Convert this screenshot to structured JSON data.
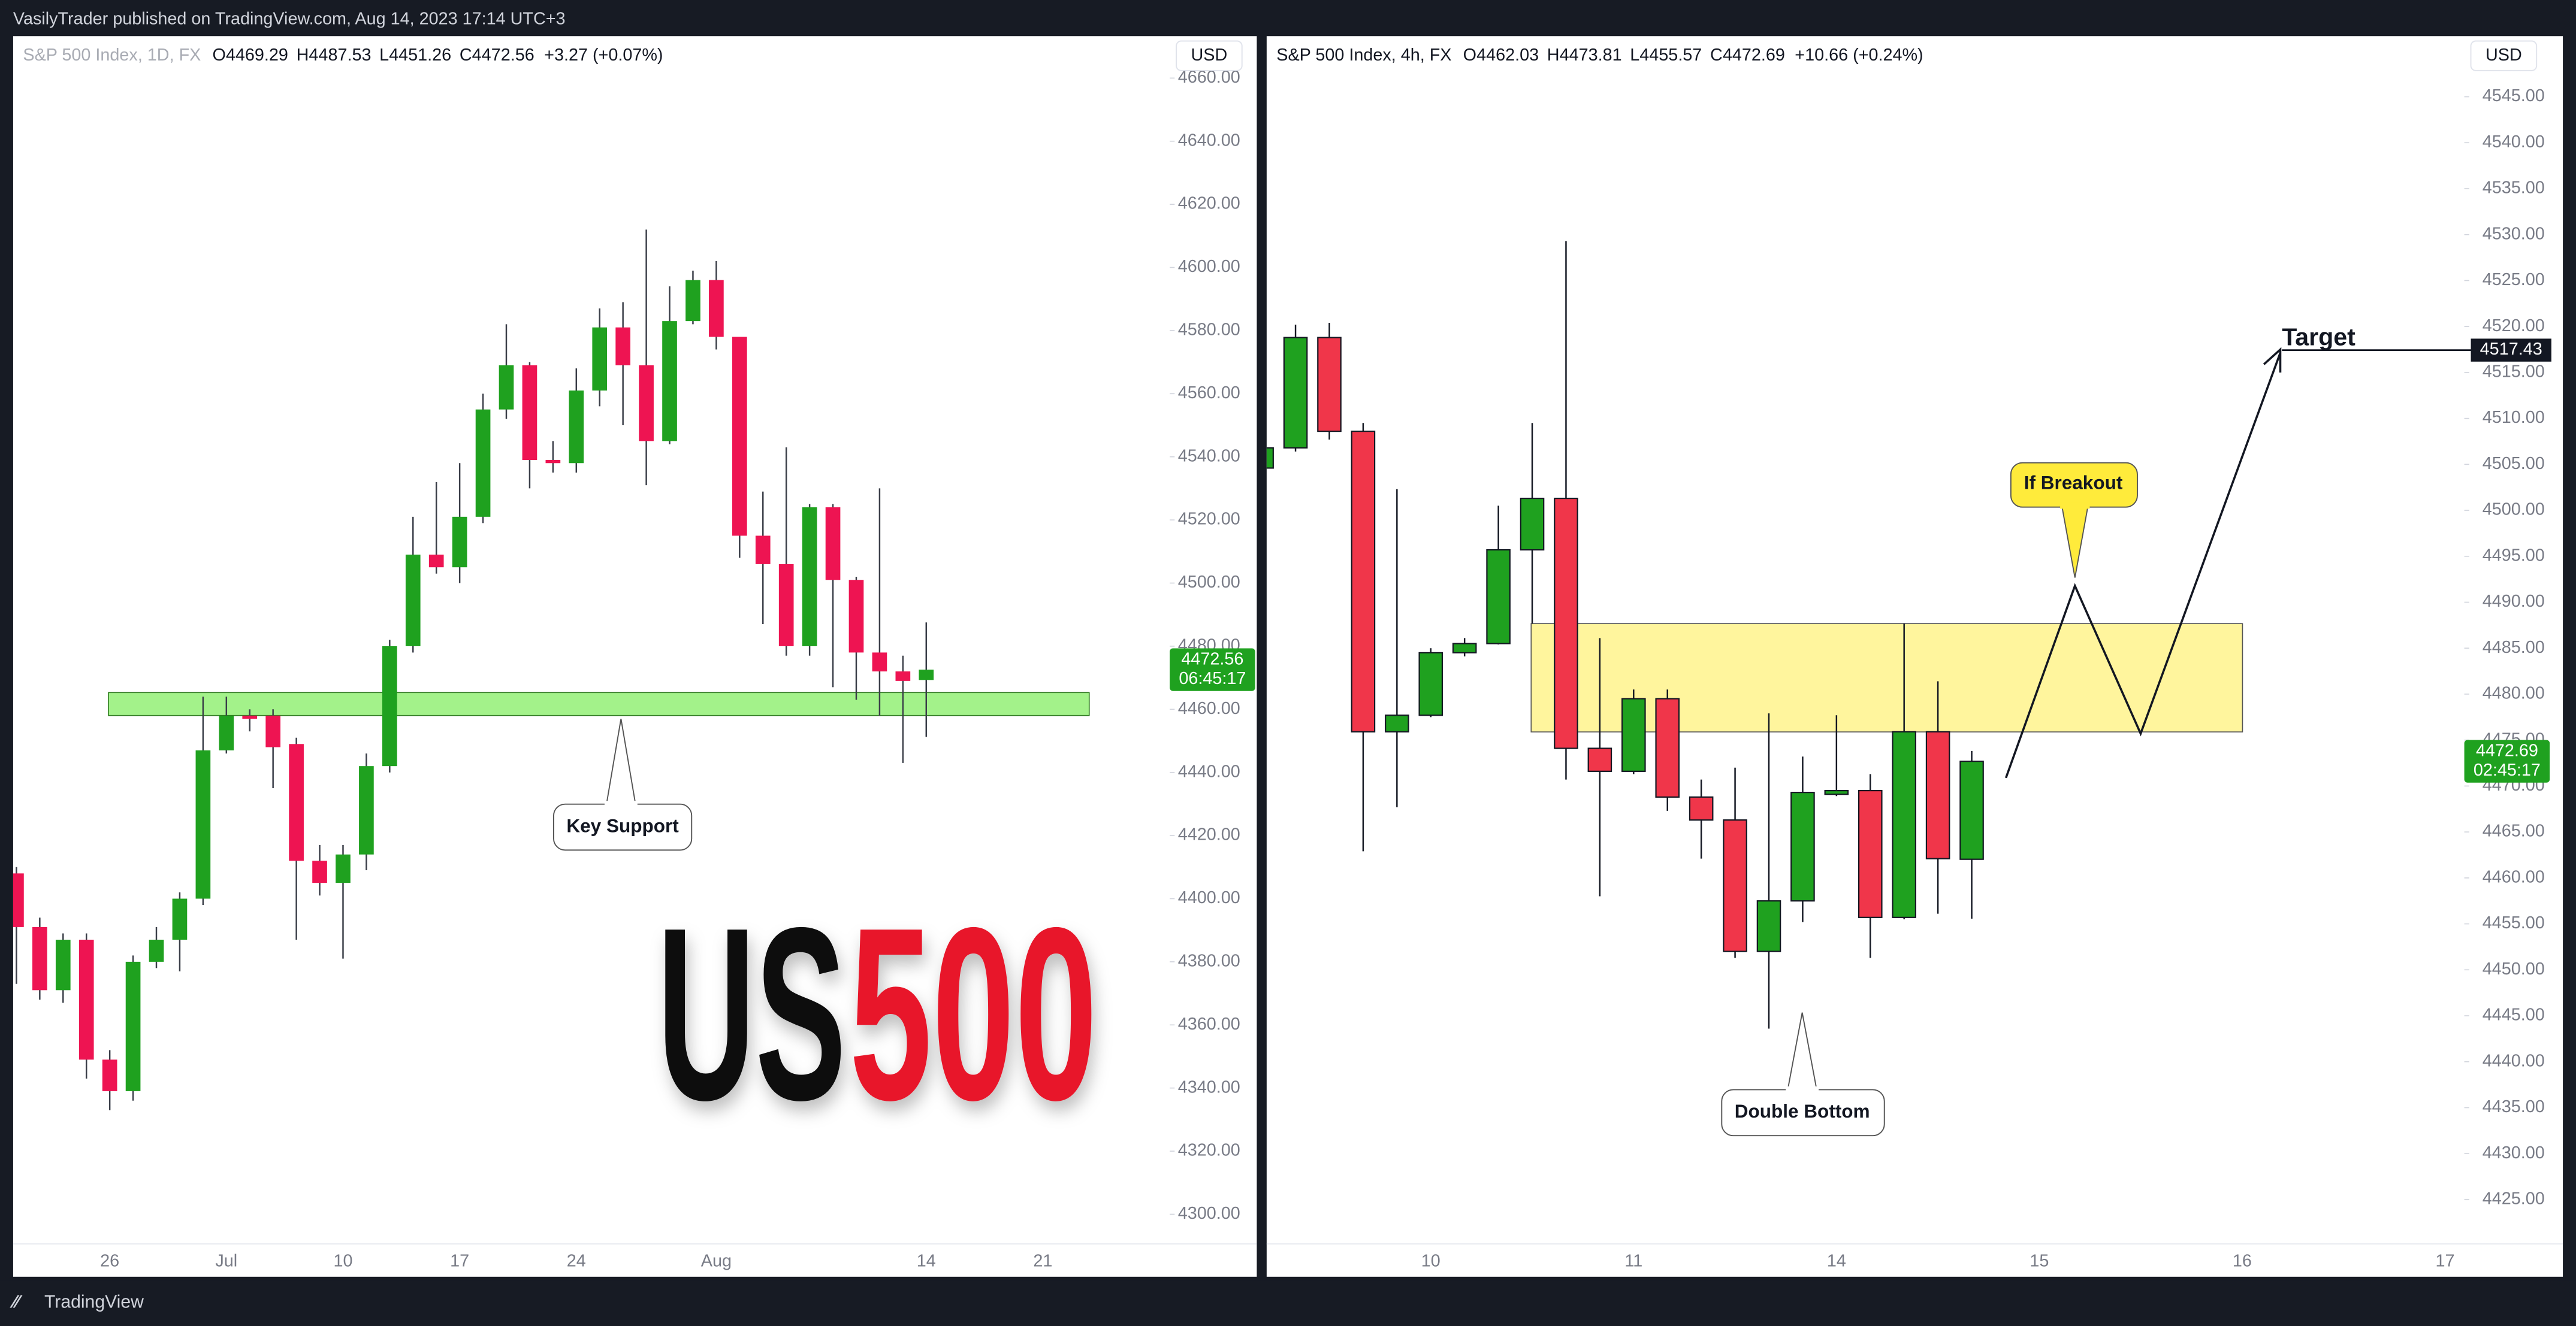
{
  "header": {
    "text": "VasilyTrader published on TradingView.com, Aug 14, 2023 17:14 UTC+3"
  },
  "footer": {
    "brand": "TradingView"
  },
  "chart_data": [
    {
      "type": "candlestick",
      "symbol": "S&P 500 Index, 1D, FX",
      "legend_keys": [
        "O",
        "H",
        "L",
        "C"
      ],
      "legend_values": [
        "4469.29",
        "4487.53",
        "4451.26",
        "4472.56"
      ],
      "change": "+3.27 (+0.07%)",
      "currency": "USD",
      "last_price": "4472.56",
      "countdown": "06:45:17",
      "up_color": "#1fa11f",
      "down_color": "#ee1452",
      "wick_color": "#3a3e48",
      "note": "Key Support",
      "watermark": [
        "US",
        "500"
      ],
      "categories": [
        null,
        null,
        null,
        null,
        "26",
        null,
        null,
        null,
        null,
        "Jul",
        null,
        null,
        null,
        null,
        "10",
        null,
        null,
        null,
        null,
        "17",
        null,
        null,
        null,
        null,
        "24",
        null,
        null,
        null,
        null,
        null,
        "Aug",
        null,
        null,
        null,
        null,
        null,
        null,
        null,
        null,
        "14",
        null,
        null,
        null,
        null,
        "21"
      ],
      "open": [
        4408,
        4391,
        4371,
        4387,
        4349,
        4339,
        4380,
        4387,
        4400,
        4447,
        4458,
        4458,
        4449,
        4412,
        4405,
        4414,
        4442,
        4480,
        4509,
        4505,
        4521,
        4555,
        4569,
        4539,
        4538,
        4561,
        4581,
        4569,
        4545,
        4583,
        4596,
        4578,
        4515,
        4506,
        4480,
        4524,
        4501,
        4478,
        4472,
        4469.29,
        null,
        null,
        null,
        null,
        null
      ],
      "high": [
        4410,
        4394,
        4389,
        4389,
        4352,
        4382,
        4391,
        4402,
        4464,
        4464,
        4460,
        4460,
        4451,
        4417,
        4417,
        4446,
        4482,
        4521,
        4532,
        4538,
        4560,
        4582,
        4570,
        4545,
        4568,
        4587,
        4589,
        4612,
        4594,
        4599,
        4602,
        4578,
        4529,
        4543,
        4525,
        4525,
        4502,
        4530,
        4477,
        4487.53,
        null,
        null,
        null,
        null,
        null
      ],
      "low": [
        4373,
        4368,
        4367,
        4343,
        4333,
        4336,
        4378,
        4377,
        4398,
        4446,
        4453,
        4435,
        4387,
        4401,
        4381,
        4409,
        4440,
        4478,
        4503,
        4500,
        4519,
        4552,
        4530,
        4535,
        4535,
        4556,
        4550,
        4531,
        4544,
        4582,
        4574,
        4508,
        4487,
        4477,
        4477,
        4467,
        4463,
        4458,
        4443,
        4451.26,
        null,
        null,
        null,
        null,
        null
      ],
      "close": [
        4391,
        4371,
        4387,
        4349,
        4339,
        4380,
        4387,
        4400,
        4447,
        4458,
        4457,
        4448,
        4412,
        4405,
        4414,
        4442,
        4480,
        4509,
        4505,
        4521,
        4555,
        4569,
        4539,
        4538,
        4561,
        4581,
        4569,
        4545,
        4583,
        4596,
        4578,
        4515,
        4506,
        4480,
        4524,
        4501,
        4478,
        4472,
        4469,
        4472.56,
        null,
        null,
        null,
        null,
        null
      ],
      "ylim": [
        4280.2,
        4673.3
      ],
      "yticks": [
        {
          "value": 4300,
          "label": "4300.00"
        },
        {
          "value": 4320,
          "label": "4320.00"
        },
        {
          "value": 4340,
          "label": "4340.00"
        },
        {
          "value": 4360,
          "label": "4360.00"
        },
        {
          "value": 4380,
          "label": "4380.00"
        },
        {
          "value": 4400,
          "label": "4400.00"
        },
        {
          "value": 4420,
          "label": "4420.00"
        },
        {
          "value": 4440,
          "label": "4440.00"
        },
        {
          "value": 4460,
          "label": "4460.00"
        },
        {
          "value": 4480,
          "label": "4480.00"
        },
        {
          "value": 4500,
          "label": "4500.00"
        },
        {
          "value": 4520,
          "label": "4520.00"
        },
        {
          "value": 4540,
          "label": "4540.00"
        },
        {
          "value": 4560,
          "label": "4560.00"
        },
        {
          "value": 4580,
          "label": "4580.00"
        },
        {
          "value": 4600,
          "label": "4600.00"
        },
        {
          "value": 4620,
          "label": "4620.00"
        },
        {
          "value": 4640,
          "label": "4640.00"
        },
        {
          "value": 4660,
          "label": "4660.00"
        }
      ]
    },
    {
      "type": "candlestick",
      "symbol": "S&P 500 Index, 4h, FX",
      "legend_keys": [
        "O",
        "H",
        "L",
        "C"
      ],
      "legend_values": [
        "4462.03",
        "4473.81",
        "4455.57",
        "4472.69"
      ],
      "change": "+10.66 (+0.24%)",
      "currency": "USD",
      "last_price": "4472.69",
      "countdown": "02:45:17",
      "up_color": "#1fa11f",
      "down_color": "#f0364a",
      "wick_color": "#131722",
      "border_color": "#131722",
      "notes": [
        "Double Bottom",
        "If Breakout"
      ],
      "target_label": "Target",
      "target_price": {
        "value": 4517.43,
        "label": "4517.43"
      },
      "categories": [
        null,
        null,
        null,
        null,
        null,
        "10",
        null,
        null,
        null,
        null,
        null,
        "11",
        null,
        null,
        null,
        null,
        null,
        "14",
        null,
        null,
        null,
        null,
        null,
        "15",
        null,
        null,
        null,
        null,
        null,
        "16",
        null,
        null,
        null,
        null,
        null,
        "17"
      ],
      "open": [
        4504.6,
        4506.8,
        4518.8,
        4508.6,
        4475.9,
        4477.7,
        4484.5,
        4485.5,
        4495.7,
        4501.3,
        4474.1,
        4471.6,
        4479.5,
        4468.8,
        4466.3,
        4452,
        4457.5,
        4469.1,
        4469.5,
        4455.7,
        4475.9,
        4462.03,
        null,
        null,
        null,
        null,
        null,
        null,
        null,
        null,
        null,
        null,
        null,
        null,
        null,
        null
      ],
      "high": [
        4507.2,
        4520.2,
        4520.4,
        4509.5,
        4502.3,
        4485,
        4486.1,
        4500.5,
        4509.5,
        4529.3,
        4486.1,
        4480.5,
        4480.5,
        4470.7,
        4472,
        4477.9,
        4473.2,
        4477.7,
        4471.3,
        4487.7,
        4481.4,
        4473.81,
        null,
        null,
        null,
        null,
        null,
        null,
        null,
        null,
        null,
        null,
        null,
        null,
        null,
        null
      ],
      "low": [
        4504.2,
        4506.4,
        4507.7,
        4462.9,
        4467.7,
        4477.5,
        4484.1,
        4485.4,
        4487.7,
        4470.7,
        4458,
        4471.3,
        4467.3,
        4462.1,
        4451.3,
        4443.6,
        4455.2,
        4468.9,
        4451.3,
        4455.5,
        4456.1,
        4455.57,
        null,
        null,
        null,
        null,
        null,
        null,
        null,
        null,
        null,
        null,
        null,
        null,
        null,
        null
      ],
      "close": [
        4506.8,
        4518.8,
        4508.6,
        4475.9,
        4477.7,
        4484.5,
        4485.5,
        4495.7,
        4501.3,
        4474.1,
        4471.6,
        4479.5,
        4468.8,
        4466.3,
        4452,
        4457.5,
        4469.3,
        4469.5,
        4455.7,
        4475.9,
        4462.1,
        4472.69,
        null,
        null,
        null,
        null,
        null,
        null,
        null,
        null,
        null,
        null,
        null,
        null,
        null,
        null
      ],
      "ylim": [
        4416.6,
        4551.6
      ],
      "yticks": [
        {
          "value": 4425,
          "label": "4425.00"
        },
        {
          "value": 4430,
          "label": "4430.00"
        },
        {
          "value": 4435,
          "label": "4435.00"
        },
        {
          "value": 4440,
          "label": "4440.00"
        },
        {
          "value": 4445,
          "label": "4445.00"
        },
        {
          "value": 4450,
          "label": "4450.00"
        },
        {
          "value": 4455,
          "label": "4455.00"
        },
        {
          "value": 4460,
          "label": "4460.00"
        },
        {
          "value": 4465,
          "label": "4465.00"
        },
        {
          "value": 4470,
          "label": "4470.00"
        },
        {
          "value": 4475,
          "label": "4475.00"
        },
        {
          "value": 4480,
          "label": "4480.00"
        },
        {
          "value": 4485,
          "label": "4485.00"
        },
        {
          "value": 4490,
          "label": "4490.00"
        },
        {
          "value": 4495,
          "label": "4495.00"
        },
        {
          "value": 4500,
          "label": "4500.00"
        },
        {
          "value": 4505,
          "label": "4505.00"
        },
        {
          "value": 4510,
          "label": "4510.00"
        },
        {
          "value": 4515,
          "label": "4515.00"
        },
        {
          "value": 4520,
          "label": "4520.00"
        },
        {
          "value": 4525,
          "label": "4525.00"
        },
        {
          "value": 4530,
          "label": "4530.00"
        },
        {
          "value": 4535,
          "label": "4535.00"
        },
        {
          "value": 4540,
          "label": "4540.00"
        },
        {
          "value": 4545,
          "label": "4545.00"
        }
      ]
    }
  ]
}
